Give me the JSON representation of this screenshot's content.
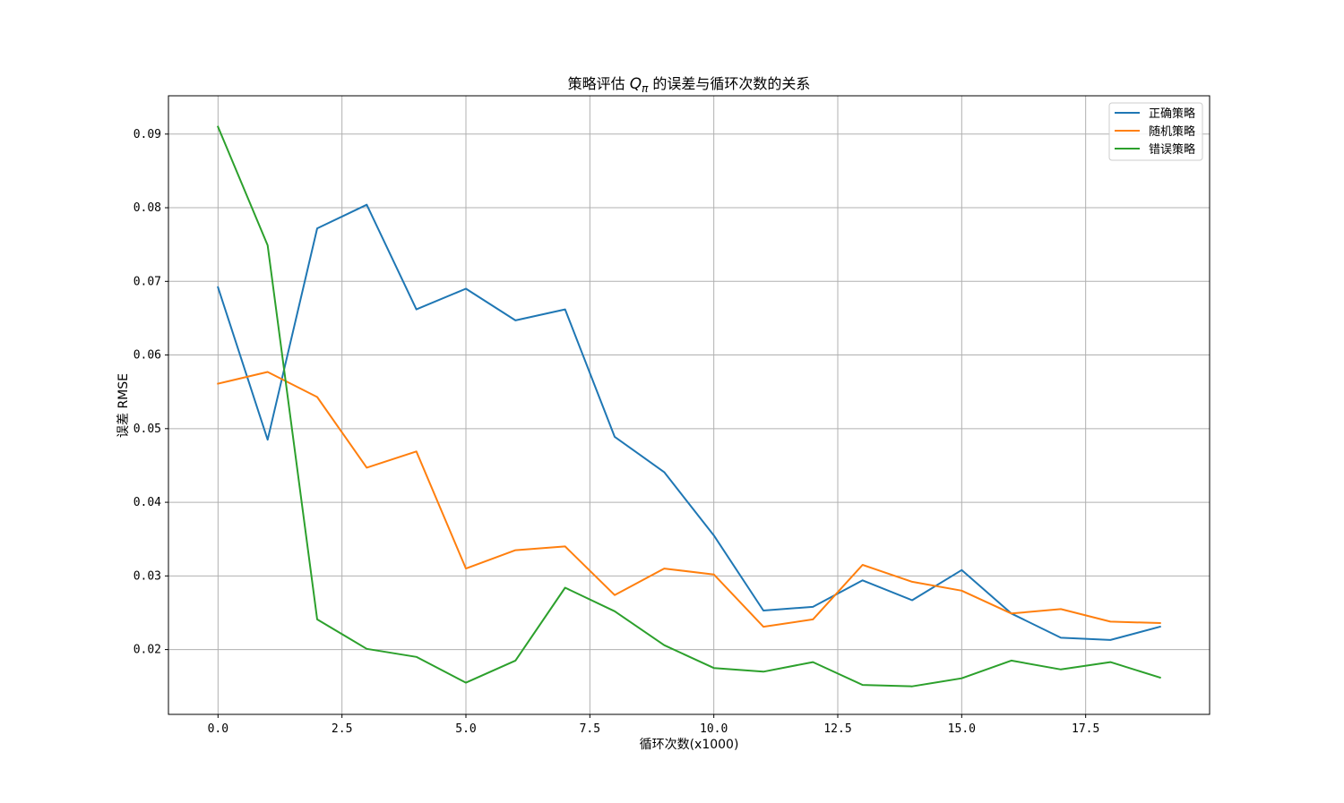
{
  "chart_data": {
    "type": "line",
    "title": "策略评估 Qπ 的误差与循环次数的关系",
    "title_parts": {
      "prefix": "策略评估 ",
      "symbol": "Q",
      "subscript": "π",
      "suffix": " 的误差与循环次数的关系"
    },
    "xlabel": "循环次数(x1000)",
    "ylabel": "误差 RMSE",
    "xlim": [
      -1,
      20
    ],
    "ylim": [
      0.0112,
      0.0952
    ],
    "xticks": [
      0.0,
      2.5,
      5.0,
      7.5,
      10.0,
      12.5,
      15.0,
      17.5
    ],
    "xtick_labels": [
      "0.0",
      "2.5",
      "5.0",
      "7.5",
      "10.0",
      "12.5",
      "15.0",
      "17.5"
    ],
    "yticks": [
      0.02,
      0.03,
      0.04,
      0.05,
      0.06,
      0.07,
      0.08,
      0.09
    ],
    "ytick_labels": [
      "0.02",
      "0.03",
      "0.04",
      "0.05",
      "0.06",
      "0.07",
      "0.08",
      "0.09"
    ],
    "grid": true,
    "legend_position": "top-right",
    "x": [
      0,
      1,
      2,
      3,
      4,
      5,
      6,
      7,
      8,
      9,
      10,
      11,
      12,
      13,
      14,
      15,
      16,
      17,
      18,
      19
    ],
    "series": [
      {
        "name": "正确策略",
        "color": "#1f77b4",
        "values": [
          0.0692,
          0.0485,
          0.0772,
          0.0804,
          0.0662,
          0.069,
          0.0647,
          0.0662,
          0.0489,
          0.0441,
          0.0355,
          0.0253,
          0.0258,
          0.0294,
          0.0267,
          0.0308,
          0.0249,
          0.0216,
          0.0213,
          0.0231
        ]
      },
      {
        "name": "随机策略",
        "color": "#ff7f0e",
        "values": [
          0.0561,
          0.0577,
          0.0543,
          0.0447,
          0.0469,
          0.031,
          0.0335,
          0.034,
          0.0274,
          0.031,
          0.0302,
          0.0231,
          0.0241,
          0.0315,
          0.0292,
          0.028,
          0.0249,
          0.0255,
          0.0238,
          0.0236
        ]
      },
      {
        "name": "错误策略",
        "color": "#2ca02c",
        "values": [
          0.091,
          0.0749,
          0.0241,
          0.0201,
          0.019,
          0.0155,
          0.0185,
          0.0284,
          0.0252,
          0.0206,
          0.0175,
          0.017,
          0.0183,
          0.0152,
          0.015,
          0.0161,
          0.0185,
          0.0173,
          0.0183,
          0.0162
        ]
      }
    ]
  }
}
